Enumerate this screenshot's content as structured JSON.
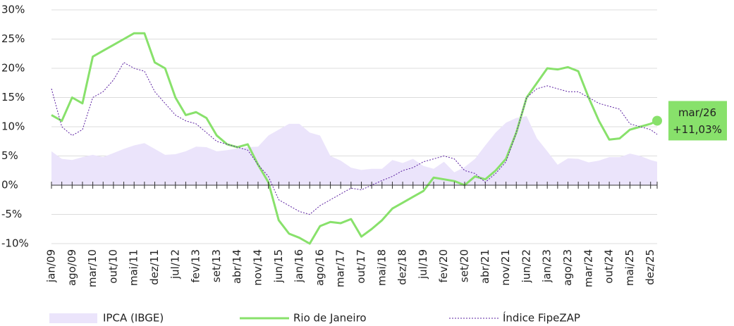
{
  "chart_data": {
    "type": "line",
    "categories": [
      "jan/09",
      null,
      "ago/09",
      null,
      "mar/10",
      null,
      "out/10",
      null,
      "mai/11",
      null,
      "dez/11",
      null,
      "jul/12",
      null,
      "fev/13",
      null,
      "set/13",
      null,
      "abr/14",
      null,
      "nov/14",
      null,
      "jun/15",
      null,
      "jan/16",
      null,
      "ago/16",
      null,
      "mar/17",
      null,
      "out/17",
      null,
      "mai/18",
      null,
      "dez/18",
      null,
      "jul/19",
      null,
      "fev/20",
      null,
      "set/20",
      null,
      "abr/21",
      null,
      "nov/21",
      null,
      "jun/22",
      null,
      "jan/23",
      null,
      "ago/23",
      null,
      "mar/24",
      null,
      "out/24",
      null,
      "mai/25",
      null,
      "dez/25",
      "mar/26"
    ],
    "series": [
      {
        "name": "IPCA (IBGE)",
        "kind": "area",
        "color": "#ebe4fb",
        "values": [
          5.8,
          4.5,
          4.3,
          4.8,
          5.2,
          4.8,
          5.5,
          6.2,
          6.8,
          7.2,
          6.2,
          5.2,
          5.3,
          5.8,
          6.6,
          6.5,
          5.8,
          6,
          6.3,
          6.5,
          6.6,
          8.5,
          9.5,
          10.5,
          10.5,
          9,
          8.5,
          5,
          4.2,
          3,
          2.6,
          2.8,
          2.8,
          4.3,
          3.8,
          4.5,
          3.3,
          2.8,
          4,
          2.2,
          3.1,
          4.5,
          6.8,
          9,
          10.7,
          11.5,
          11.8,
          8,
          5.8,
          3.5,
          4.6,
          4.5,
          3.9,
          4.2,
          4.8,
          4.8,
          5.4,
          5,
          4.3,
          4
        ]
      },
      {
        "name": "Rio de Janeiro",
        "kind": "line",
        "color": "#88e16b",
        "values": [
          12,
          11,
          15,
          14,
          22,
          23,
          24,
          25,
          26,
          26,
          21,
          20,
          15,
          12,
          12.5,
          11.5,
          8.5,
          7,
          6.5,
          7,
          3.5,
          0.5,
          -6,
          -8.3,
          -9,
          -10,
          -7,
          -6.3,
          -6.5,
          -5.8,
          -8.8,
          -7.5,
          -6,
          -4,
          -3,
          -2,
          -1,
          1.3,
          1,
          0.7,
          0,
          1.5,
          1,
          2.5,
          4.5,
          9,
          15,
          17.5,
          20,
          19.8,
          20.2,
          19.5,
          15,
          11,
          7.8,
          8,
          9.5,
          10,
          10.5,
          11.03
        ],
        "value_labels": [
          null,
          null,
          null,
          null,
          null,
          null,
          null,
          null,
          null,
          null,
          null,
          null,
          null,
          null,
          null,
          null,
          null,
          null,
          null,
          null,
          null,
          null,
          null,
          null,
          null,
          null,
          null,
          null,
          null,
          null,
          null,
          null,
          null,
          null,
          null,
          null,
          null,
          null,
          null,
          null,
          null,
          null,
          null,
          null,
          null,
          null,
          null,
          null,
          null,
          null,
          null,
          null,
          null,
          null,
          null,
          null,
          null,
          null,
          null,
          "+11,03%"
        ]
      },
      {
        "name": "Índice FipeZAP",
        "kind": "dotted",
        "color": "#5a1fa0",
        "values": [
          16.5,
          10,
          8.5,
          9.5,
          15,
          16,
          18,
          21,
          20,
          19.5,
          16,
          14,
          12,
          11,
          10.5,
          9,
          7.5,
          7,
          6.5,
          6,
          3.5,
          1.5,
          -2.5,
          -3.5,
          -4.5,
          -5,
          -3.5,
          -2.5,
          -1.5,
          -0.5,
          -0.8,
          0,
          0.8,
          1.5,
          2.5,
          3,
          4,
          4.5,
          5,
          4.5,
          2.5,
          2,
          0.5,
          2,
          4,
          9,
          15,
          16.5,
          17,
          16.5,
          16,
          16,
          15,
          14,
          13.5,
          13,
          10.5,
          10,
          9.5,
          8.7
        ]
      }
    ],
    "ylim": [
      -10,
      30
    ],
    "yticks": [
      {
        "value": -10,
        "label": "-10%"
      },
      {
        "value": -5,
        "label": "-5%"
      },
      {
        "value": 0,
        "label": "0%"
      },
      {
        "value": 5,
        "label": "5%"
      },
      {
        "value": 10,
        "label": "10%"
      },
      {
        "value": 15,
        "label": "15%"
      },
      {
        "value": 20,
        "label": "20%"
      },
      {
        "value": 25,
        "label": "25%"
      },
      {
        "value": 30,
        "label": "30%"
      }
    ],
    "grid": true
  }
}
